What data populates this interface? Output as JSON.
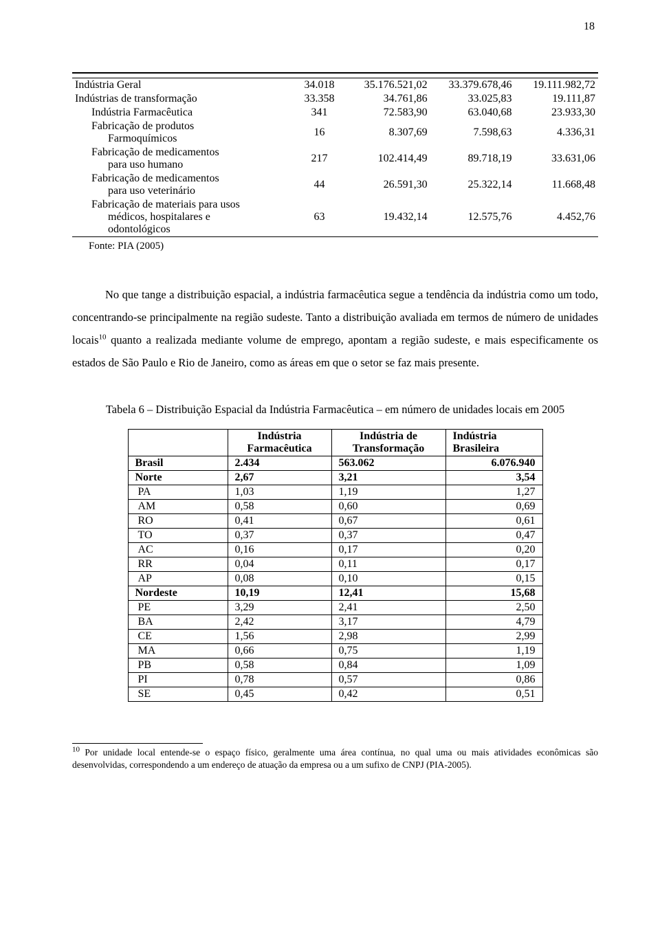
{
  "page_number": "18",
  "table1": {
    "rows": [
      {
        "label0": "Indústria Geral",
        "c1": "34.018",
        "c2": "35.176.521,02",
        "c3": "33.379.678,46",
        "c4": "19.111.982,72",
        "i": 0
      },
      {
        "label0": "Indústrias de transformação",
        "c1": "33.358",
        "c2": "34.761,86",
        "c3": "33.025,83",
        "c4": "19.111,87",
        "i": 0
      },
      {
        "label0": "Indústria Farmacêutica",
        "c1": "341",
        "c2": "72.583,90",
        "c3": "63.040,68",
        "c4": "23.933,30",
        "i": 1
      },
      {
        "label0": "Fabricação de produtos",
        "label1": "Farmoquímicos",
        "c1": "16",
        "c2": "8.307,69",
        "c3": "7.598,63",
        "c4": "4.336,31",
        "i": 2
      },
      {
        "label0": "Fabricação de medicamentos",
        "label1": "para uso humano",
        "c1": "217",
        "c2": "102.414,49",
        "c3": "89.718,19",
        "c4": "33.631,06",
        "i": 2
      },
      {
        "label0": "Fabricação de medicamentos",
        "label1": "para uso veterinário",
        "c1": "44",
        "c2": "26.591,30",
        "c3": "25.322,14",
        "c4": "11.668,48",
        "i": 2
      },
      {
        "label0": "Fabricação de materiais para usos",
        "label1": "médicos, hospitalares e",
        "label2": "odontológicos",
        "c1": "63",
        "c2": "19.432,14",
        "c3": "12.575,76",
        "c4": "4.452,76",
        "i": 2
      }
    ],
    "source": "Fonte: PIA (2005)"
  },
  "body_para": "No que tange a distribuição espacial, a indústria farmacêutica segue a tendência da indústria como um todo, concentrando-se principalmente na região sudeste. Tanto a distribuição avaliada em termos de número de unidades locais",
  "body_para_sup": "10",
  "body_para_cont": " quanto a realizada mediante volume de emprego, apontam a região sudeste, e mais especificamente os estados de São Paulo e Rio de Janeiro, como as áreas em que o setor se faz mais presente.",
  "table2_title": "Tabela 6 – Distribuição Espacial da Indústria Farmacêutica – em número de unidades locais em 2005",
  "table2": {
    "headers": [
      "",
      "Indústria Farmacêutica",
      "Indústria de Transformação",
      "Indústria Brasileira"
    ],
    "rows": [
      {
        "b": true,
        "l": "Brasil",
        "v": [
          "2.434",
          "563.062",
          "6.076.940"
        ]
      },
      {
        "b": true,
        "l": "Norte",
        "v": [
          "2,67",
          "3,21",
          "3,54"
        ]
      },
      {
        "b": false,
        "l": "PA",
        "v": [
          "1,03",
          "1,19",
          "1,27"
        ]
      },
      {
        "b": false,
        "l": "AM",
        "v": [
          "0,58",
          "0,60",
          "0,69"
        ]
      },
      {
        "b": false,
        "l": "RO",
        "v": [
          "0,41",
          "0,67",
          "0,61"
        ]
      },
      {
        "b": false,
        "l": "TO",
        "v": [
          "0,37",
          "0,37",
          "0,47"
        ]
      },
      {
        "b": false,
        "l": "AC",
        "v": [
          "0,16",
          "0,17",
          "0,20"
        ]
      },
      {
        "b": false,
        "l": "RR",
        "v": [
          "0,04",
          "0,11",
          "0,17"
        ]
      },
      {
        "b": false,
        "l": "AP",
        "v": [
          "0,08",
          "0,10",
          "0,15"
        ]
      },
      {
        "b": true,
        "l": "Nordeste",
        "v": [
          "10,19",
          "12,41",
          "15,68"
        ]
      },
      {
        "b": false,
        "l": "PE",
        "v": [
          "3,29",
          "2,41",
          "2,50"
        ]
      },
      {
        "b": false,
        "l": "BA",
        "v": [
          "2,42",
          "3,17",
          "4,79"
        ]
      },
      {
        "b": false,
        "l": "CE",
        "v": [
          "1,56",
          "2,98",
          "2,99"
        ]
      },
      {
        "b": false,
        "l": "MA",
        "v": [
          "0,66",
          "0,75",
          "1,19"
        ]
      },
      {
        "b": false,
        "l": "PB",
        "v": [
          "0,58",
          "0,84",
          "1,09"
        ]
      },
      {
        "b": false,
        "l": "PI",
        "v": [
          "0,78",
          "0,57",
          "0,86"
        ]
      },
      {
        "b": false,
        "l": "SE",
        "v": [
          "0,45",
          "0,42",
          "0,51"
        ]
      }
    ]
  },
  "footnote_num": "10",
  "footnote": " Por unidade local entende-se o espaço físico, geralmente uma área contínua, no qual uma ou mais atividades econômicas são desenvolvidas, correspondendo a um endereço de atuação da empresa ou a um sufixo de CNPJ (PIA-2005)."
}
